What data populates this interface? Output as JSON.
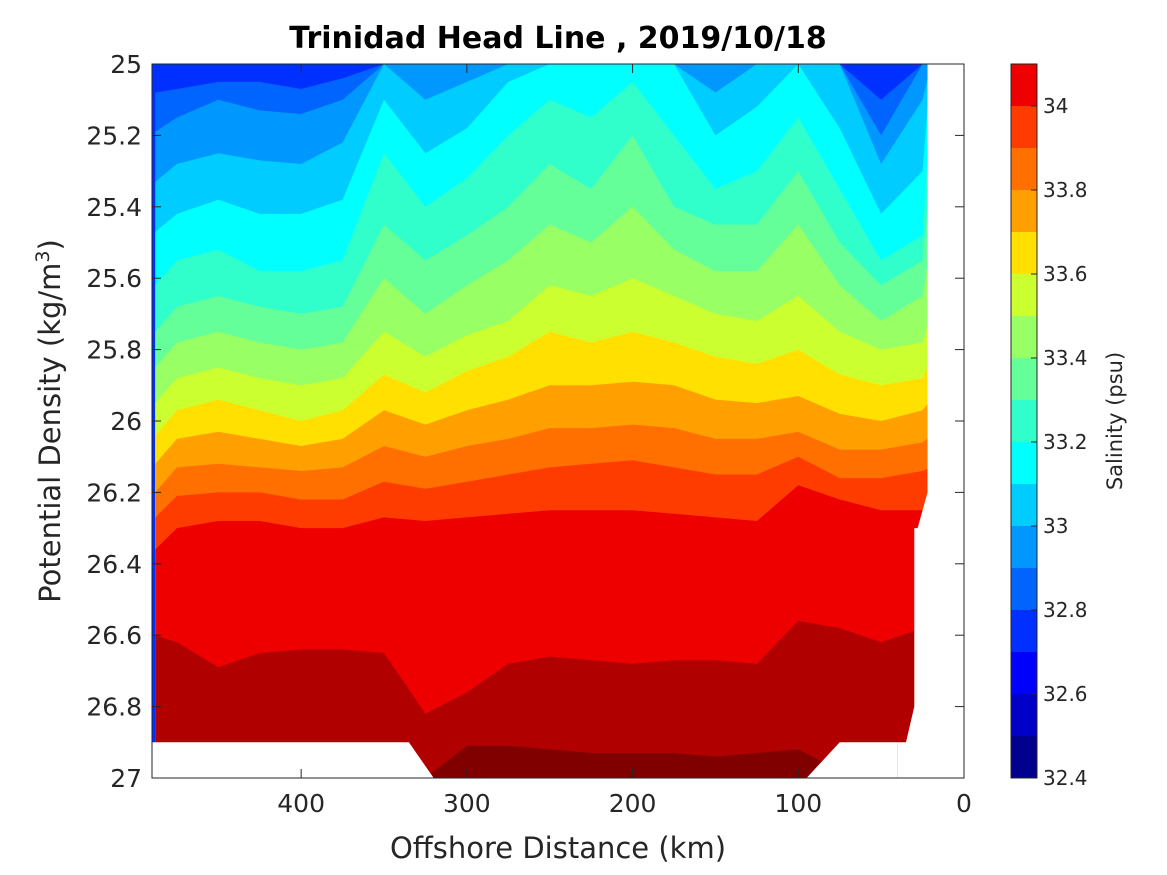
{
  "chart_data": {
    "type": "contourf",
    "title": "Trinidad Head Line , 2019/10/18",
    "xlabel": "Offshore Distance (km)",
    "ylabel_main": "Potential Density (kg/m",
    "ylabel_sup": "3",
    "ylabel_close": ")",
    "colorbar_label": "Salinity (psu)",
    "x_reversed": true,
    "y_reversed": true,
    "xlim": [
      0,
      490
    ],
    "ylim": [
      25,
      27
    ],
    "x_ticks": [
      400,
      300,
      200,
      100,
      0
    ],
    "y_ticks": [
      25,
      25.2,
      25.4,
      25.6,
      25.8,
      26,
      26.2,
      26.4,
      26.6,
      26.8,
      27
    ],
    "y_tick_labels": [
      "25",
      "25.2",
      "25.4",
      "25.6",
      "25.8",
      "26",
      "26.2",
      "26.4",
      "26.6",
      "26.8",
      "27"
    ],
    "colorbar_ticks": [
      34,
      33.8,
      33.6,
      33.4,
      33.2,
      33,
      32.8,
      32.6,
      32.4
    ],
    "colorbar_range": [
      32.4,
      34.1
    ],
    "contour_levels": [
      32.4,
      32.5,
      32.6,
      32.7,
      32.8,
      32.9,
      33.0,
      33.1,
      33.2,
      33.3,
      33.4,
      33.5,
      33.6,
      33.7,
      33.8,
      33.9,
      34.0,
      34.1
    ],
    "level_colors": [
      "#00008f",
      "#0000c8",
      "#0000ff",
      "#0030ff",
      "#0064ff",
      "#0098ff",
      "#00ccff",
      "#00ffff",
      "#30ffcc",
      "#64ff98",
      "#98ff64",
      "#ccff30",
      "#ffe000",
      "#ffa000",
      "#ff7000",
      "#ff3c00",
      "#ee0000",
      "#b00000",
      "#800000"
    ],
    "profile_x": [
      488,
      475,
      450,
      425,
      400,
      375,
      350,
      325,
      300,
      275,
      250,
      225,
      200,
      175,
      150,
      125,
      100,
      75,
      50,
      25,
      20
    ],
    "isohaline_depths": [
      {
        "value": 32.7,
        "y": [
          25.08,
          25.07,
          25.05,
          25.05,
          25.07,
          25.04,
          25.0,
          25.0,
          25.0,
          25.0,
          25.0,
          25.0,
          25.0,
          25.0,
          25.0,
          25.0,
          25.0,
          25.0,
          25.1,
          25.0,
          25.0
        ]
      },
      {
        "value": 32.8,
        "y": [
          25.19,
          25.15,
          25.1,
          25.13,
          25.14,
          25.1,
          25.0,
          25.0,
          25.0,
          25.0,
          25.0,
          25.0,
          25.0,
          25.0,
          25.0,
          25.0,
          25.0,
          25.0,
          25.2,
          25.0,
          25.0
        ]
      },
      {
        "value": 32.9,
        "y": [
          25.33,
          25.28,
          25.25,
          25.27,
          25.28,
          25.22,
          25.0,
          25.1,
          25.05,
          25.0,
          25.0,
          25.0,
          25.0,
          25.0,
          25.08,
          25.0,
          25.0,
          25.0,
          25.28,
          25.1,
          25.0
        ]
      },
      {
        "value": 33.0,
        "y": [
          25.47,
          25.42,
          25.38,
          25.42,
          25.42,
          25.38,
          25.1,
          25.25,
          25.18,
          25.05,
          25.0,
          25.0,
          25.0,
          25.0,
          25.2,
          25.12,
          25.0,
          25.18,
          25.42,
          25.3,
          25.0
        ]
      },
      {
        "value": 33.1,
        "y": [
          25.62,
          25.55,
          25.52,
          25.58,
          25.58,
          25.55,
          25.25,
          25.4,
          25.32,
          25.2,
          25.1,
          25.15,
          25.05,
          25.2,
          25.35,
          25.3,
          25.15,
          25.35,
          25.55,
          25.48,
          25.1
        ]
      },
      {
        "value": 33.2,
        "y": [
          25.75,
          25.68,
          25.65,
          25.68,
          25.7,
          25.68,
          25.45,
          25.55,
          25.48,
          25.4,
          25.28,
          25.35,
          25.2,
          25.4,
          25.45,
          25.45,
          25.3,
          25.5,
          25.62,
          25.55,
          25.3
        ]
      },
      {
        "value": 33.3,
        "y": [
          25.85,
          25.78,
          25.75,
          25.78,
          25.8,
          25.78,
          25.6,
          25.7,
          25.62,
          25.55,
          25.45,
          25.5,
          25.4,
          25.52,
          25.58,
          25.58,
          25.45,
          25.62,
          25.72,
          25.65,
          25.5
        ]
      },
      {
        "value": 33.4,
        "y": [
          25.95,
          25.88,
          25.85,
          25.88,
          25.9,
          25.88,
          25.75,
          25.82,
          25.76,
          25.72,
          25.62,
          25.65,
          25.6,
          25.65,
          25.7,
          25.72,
          25.65,
          25.75,
          25.8,
          25.78,
          25.7
        ]
      },
      {
        "value": 33.5,
        "y": [
          26.04,
          25.97,
          25.94,
          25.97,
          26.0,
          25.97,
          25.87,
          25.92,
          25.86,
          25.82,
          25.75,
          25.78,
          25.75,
          25.78,
          25.82,
          25.84,
          25.8,
          25.87,
          25.9,
          25.88,
          25.83
        ]
      },
      {
        "value": 33.6,
        "y": [
          26.12,
          26.05,
          26.03,
          26.05,
          26.07,
          26.05,
          25.97,
          26.01,
          25.97,
          25.94,
          25.9,
          25.9,
          25.89,
          25.9,
          25.94,
          25.95,
          25.93,
          25.98,
          26.0,
          25.97,
          25.94
        ]
      },
      {
        "value": 33.7,
        "y": [
          26.2,
          26.13,
          26.12,
          26.13,
          26.14,
          26.13,
          26.07,
          26.1,
          26.07,
          26.05,
          26.02,
          26.02,
          26.01,
          26.02,
          26.05,
          26.05,
          26.03,
          26.08,
          26.08,
          26.06,
          26.04
        ]
      },
      {
        "value": 33.8,
        "y": [
          26.27,
          26.21,
          26.2,
          26.2,
          26.22,
          26.22,
          26.17,
          26.19,
          26.17,
          26.15,
          26.13,
          26.12,
          26.11,
          26.13,
          26.15,
          26.15,
          26.1,
          26.16,
          26.16,
          26.14,
          26.13
        ]
      },
      {
        "value": 33.9,
        "y": [
          26.36,
          26.3,
          26.28,
          26.28,
          26.3,
          26.3,
          26.27,
          26.28,
          26.27,
          26.26,
          26.25,
          26.25,
          26.25,
          26.26,
          26.27,
          26.28,
          26.18,
          26.22,
          26.25,
          26.25,
          26.2
        ]
      },
      {
        "value": 34.0,
        "y": [
          26.6,
          26.62,
          26.69,
          26.65,
          26.64,
          26.64,
          26.65,
          26.82,
          26.76,
          26.68,
          26.66,
          26.67,
          26.68,
          26.67,
          26.67,
          26.68,
          26.56,
          26.58,
          26.62,
          26.58,
          26.6
        ]
      },
      {
        "value": 34.1,
        "y": [
          27.0,
          27.0,
          27.0,
          27.0,
          27.0,
          27.0,
          27.0,
          27.0,
          26.91,
          26.91,
          26.92,
          26.93,
          26.93,
          26.93,
          26.94,
          26.93,
          26.92,
          26.98,
          27.0,
          27.0,
          27.0
        ]
      }
    ],
    "data_mask": {
      "right_edge_x": [
        22,
        22,
        28,
        30,
        30,
        30,
        35,
        40
      ],
      "right_edge_y": [
        25.0,
        26.2,
        26.3,
        26.3,
        26.6,
        26.8,
        26.9,
        26.9
      ],
      "bottom_gap_left": {
        "x": [
          490,
          335,
          320
        ],
        "y": [
          26.9,
          26.9,
          27.0
        ]
      },
      "bottom_gap_right": {
        "x": [
          95,
          75,
          40
        ],
        "y": [
          27.0,
          26.9,
          26.9
        ]
      }
    }
  }
}
